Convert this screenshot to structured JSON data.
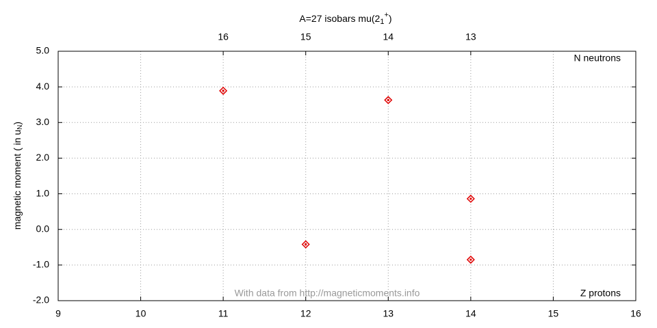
{
  "chart_data": {
    "type": "scatter",
    "title": {
      "text": "A=27 isobars mu(2",
      "subscript": "1",
      "superscript": "+",
      "close": ")"
    },
    "y_label": {
      "text": "magnetic moment ( in u",
      "subscript": "N",
      "close": ")"
    },
    "x_label": "Z protons",
    "x2_label": "N neutrons",
    "watermark": "With data from http://magneticmoments.info",
    "x": [
      11,
      12,
      13,
      14,
      14
    ],
    "series": [
      {
        "color": "#e00000",
        "values": [
          3.89,
          -0.42,
          3.63,
          0.86,
          -0.85
        ]
      }
    ],
    "xlim": [
      9,
      16
    ],
    "xticks": [
      9,
      10,
      11,
      12,
      13,
      14,
      15,
      16
    ],
    "x2lim": [
      18,
      11
    ],
    "x2ticks": [
      16,
      15,
      14,
      13
    ],
    "ylim": [
      -2,
      5
    ],
    "yticks": [
      {
        "value": -2,
        "label": "-2.0"
      },
      {
        "value": -1,
        "label": "-1.0"
      },
      {
        "value": 0,
        "label": "0.0"
      },
      {
        "value": 1,
        "label": "1.0"
      },
      {
        "value": 2,
        "label": "2.0"
      },
      {
        "value": 3,
        "label": "3.0"
      },
      {
        "value": 4,
        "label": "4.0"
      },
      {
        "value": 5,
        "label": "5.0"
      }
    ],
    "grid": true
  }
}
